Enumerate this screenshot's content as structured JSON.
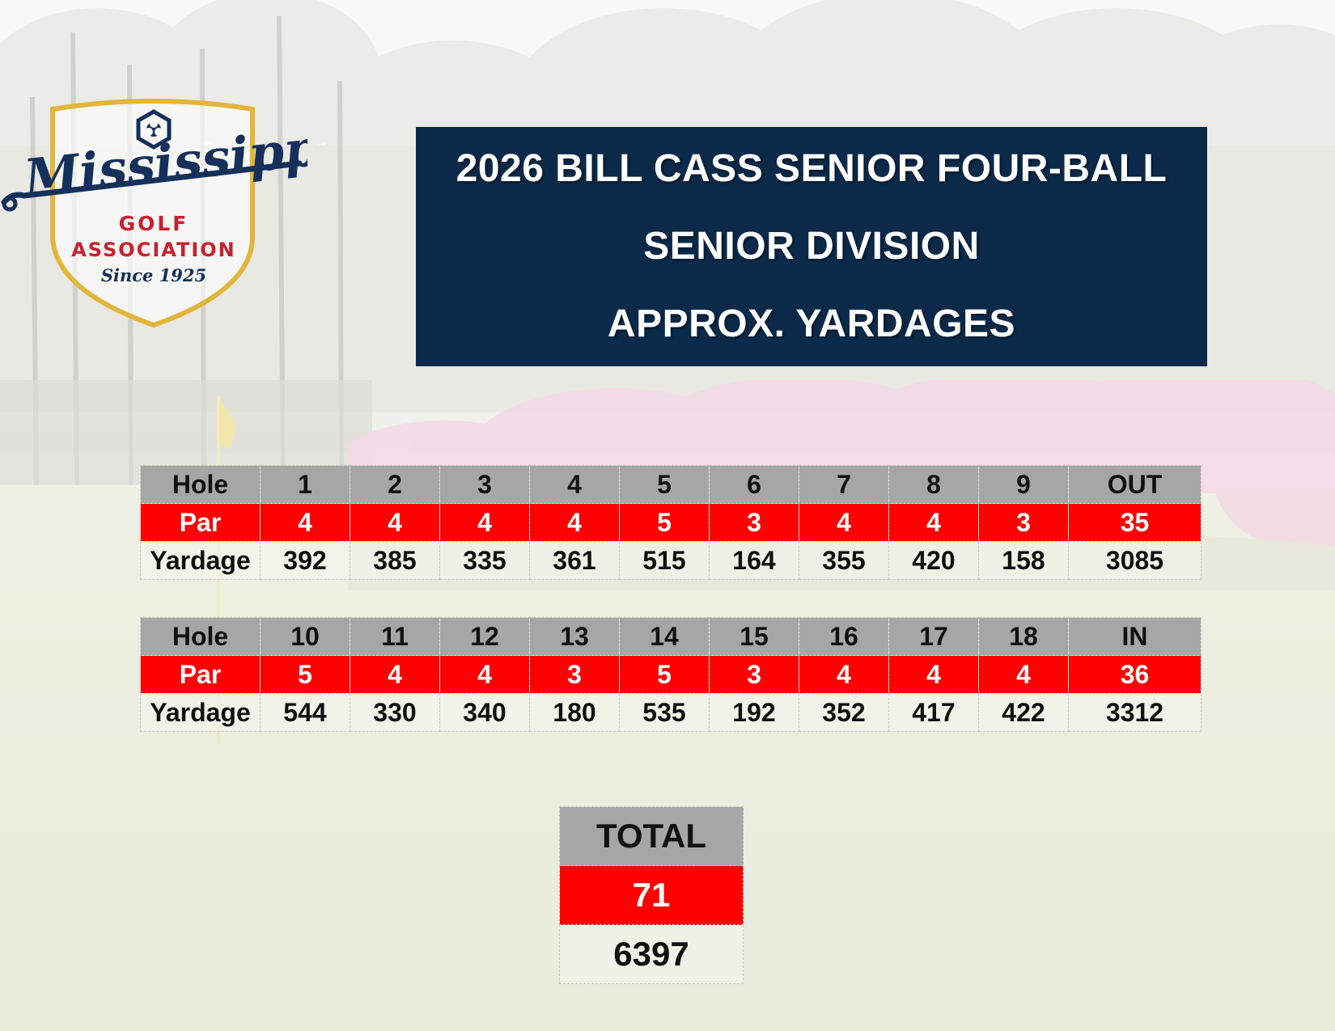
{
  "logo": {
    "script": "Mississippi",
    "line1": "GOLF",
    "line2": "ASSOCIATION",
    "since": "Since 1925",
    "colors": {
      "navy": "#15305a",
      "red": "#c8202f",
      "gold": "#e3b53a"
    }
  },
  "title": {
    "line1": "2026 BILL CASS SENIOR FOUR-BALL",
    "line2": "SENIOR DIVISION",
    "line3": "APPROX. YARDAGES"
  },
  "front_nine": {
    "hole_label": "Hole",
    "par_label": "Par",
    "yardage_label": "Yardage",
    "holes": [
      "1",
      "2",
      "3",
      "4",
      "5",
      "6",
      "7",
      "8",
      "9"
    ],
    "pars": [
      "4",
      "4",
      "4",
      "4",
      "5",
      "3",
      "4",
      "4",
      "3"
    ],
    "yardages": [
      "392",
      "385",
      "335",
      "361",
      "515",
      "164",
      "355",
      "420",
      "158"
    ],
    "sum_label": "OUT",
    "sum_par": "35",
    "sum_yardage": "3085"
  },
  "back_nine": {
    "hole_label": "Hole",
    "par_label": "Par",
    "yardage_label": "Yardage",
    "holes": [
      "10",
      "11",
      "12",
      "13",
      "14",
      "15",
      "16",
      "17",
      "18"
    ],
    "pars": [
      "5",
      "4",
      "4",
      "3",
      "5",
      "3",
      "4",
      "4",
      "4"
    ],
    "yardages": [
      "544",
      "330",
      "340",
      "180",
      "535",
      "192",
      "352",
      "417",
      "422"
    ],
    "sum_label": "IN",
    "sum_par": "36",
    "sum_yardage": "3312"
  },
  "total": {
    "label": "TOTAL",
    "par": "71",
    "yardage": "6397"
  },
  "colors": {
    "title_bg": "#0b2a4a",
    "header_gray": "#a6a6a6",
    "par_red": "#ff0000"
  }
}
